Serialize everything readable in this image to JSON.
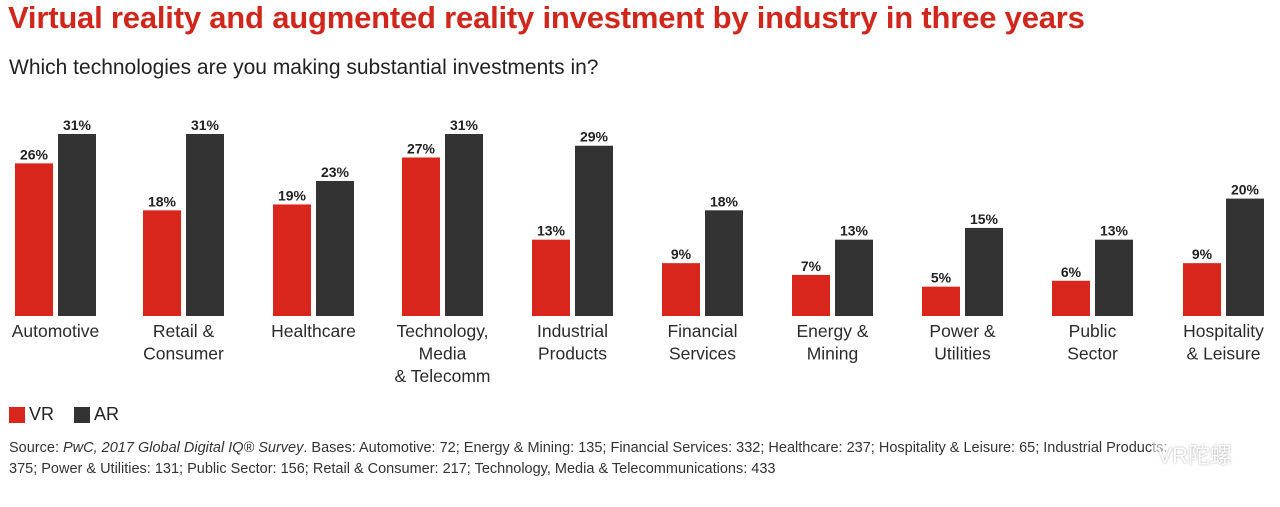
{
  "title": "Virtual reality and augmented reality investment by industry in three years",
  "subtitle": "Which technologies are you making substantial investments in?",
  "legend": {
    "vr_label": "VR",
    "ar_label": "AR"
  },
  "colors": {
    "vr": "#d9261c",
    "ar": "#333333",
    "title": "#d0271c"
  },
  "source": {
    "label": "Source: ",
    "italic": "PwC, 2017 Global Digital IQ® Survey",
    "rest": ". Bases: Automotive: 72; Energy & Mining: 135; Financial Services: 332; Healthcare: 237; Hospitality & Leisure: 65; Industrial Products: 375; Power & Utilities: 131; Public Sector: 156; Retail & Consumer: 217; Technology, Media & Telecommunications: 433"
  },
  "watermark": "VR陀螺",
  "chart_data": {
    "type": "bar",
    "categories": [
      [
        "Automotive"
      ],
      [
        "Retail &",
        "Consumer"
      ],
      [
        "Healthcare"
      ],
      [
        "Technology,",
        "Media",
        "& Telecomm"
      ],
      [
        "Industrial",
        "Products"
      ],
      [
        "Financial",
        "Services"
      ],
      [
        "Energy &",
        "Mining"
      ],
      [
        "Power &",
        "Utilities"
      ],
      [
        "Public",
        "Sector"
      ],
      [
        "Hospitality",
        "& Leisure"
      ]
    ],
    "series": [
      {
        "name": "VR",
        "values": [
          26,
          18,
          19,
          27,
          13,
          9,
          7,
          5,
          6,
          9
        ],
        "labels": [
          "26%",
          "18%",
          "19%",
          "27%",
          "13%",
          "9%",
          "7%",
          "5%",
          "6%",
          "9%"
        ]
      },
      {
        "name": "AR",
        "values": [
          31,
          31,
          23,
          31,
          29,
          18,
          13,
          15,
          13,
          20
        ],
        "labels": [
          "31%",
          "31%",
          "23%",
          "31%",
          "29%",
          "18%",
          "13%",
          "15%",
          "13%",
          "20%"
        ]
      }
    ],
    "unit": "%",
    "ylim": [
      0,
      31
    ],
    "grid": false,
    "legend_position": "bottom-left"
  }
}
